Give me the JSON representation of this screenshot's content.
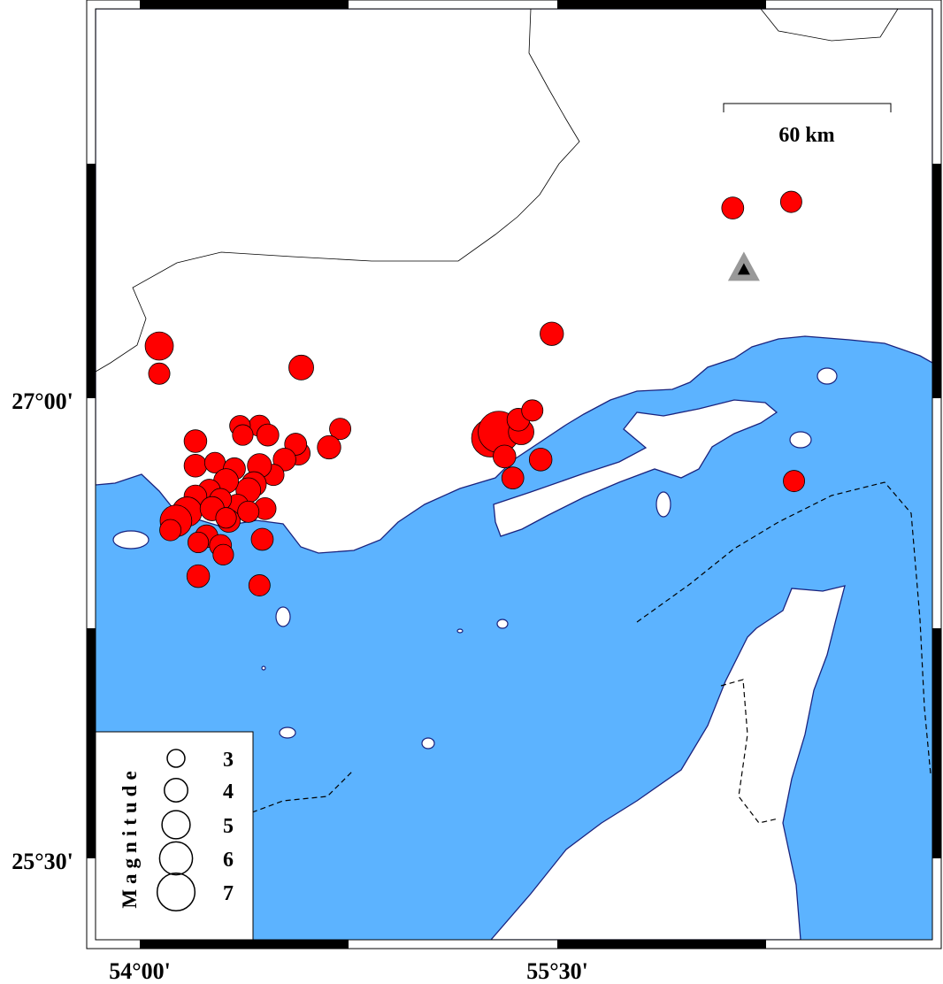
{
  "map": {
    "lon_range": [
      53.84,
      56.85
    ],
    "lat_range": [
      25.17,
      28.3
    ],
    "colors": {
      "sea": "#5cb3ff",
      "land": "#ffffff",
      "coast": "#1a237e",
      "event": "#ff0000",
      "station": "#999999"
    },
    "x_ticks": [
      {
        "lon": 54.0,
        "label": "54°00'"
      },
      {
        "lon": 55.5,
        "label": "55°30'"
      }
    ],
    "y_ticks": [
      {
        "lat": 27.0,
        "label": "27°00'"
      },
      {
        "lat": 25.5,
        "label": "25°30'"
      }
    ],
    "scale_bar": {
      "label": "60 km",
      "length_km": 60
    },
    "station": {
      "lon": 56.17,
      "lat": 27.42,
      "icon": "triangle-icon"
    },
    "legend": {
      "title": "Magnitude",
      "entries": [
        {
          "mag": 3,
          "label": "3"
        },
        {
          "mag": 4,
          "label": "4"
        },
        {
          "mag": 5,
          "label": "5"
        },
        {
          "mag": 6,
          "label": "6"
        },
        {
          "mag": 7,
          "label": "7"
        }
      ]
    }
  },
  "chart_data": {
    "type": "scatter",
    "events": [
      {
        "lon": 56.13,
        "lat": 27.62,
        "mag": 3.5
      },
      {
        "lon": 56.34,
        "lat": 27.64,
        "mag": 3.4
      },
      {
        "lon": 55.48,
        "lat": 27.21,
        "mag": 3.7
      },
      {
        "lon": 54.07,
        "lat": 27.17,
        "mag": 4.4
      },
      {
        "lon": 54.07,
        "lat": 27.08,
        "mag": 3.4
      },
      {
        "lon": 54.58,
        "lat": 27.1,
        "mag": 3.9
      },
      {
        "lon": 54.72,
        "lat": 26.9,
        "mag": 3.4
      },
      {
        "lon": 54.68,
        "lat": 26.84,
        "mag": 3.7
      },
      {
        "lon": 54.57,
        "lat": 26.82,
        "mag": 3.7
      },
      {
        "lon": 54.56,
        "lat": 26.85,
        "mag": 3.5
      },
      {
        "lon": 54.52,
        "lat": 26.8,
        "mag": 3.6
      },
      {
        "lon": 54.48,
        "lat": 26.75,
        "mag": 3.4
      },
      {
        "lon": 54.43,
        "lat": 26.91,
        "mag": 3.4
      },
      {
        "lon": 54.36,
        "lat": 26.91,
        "mag": 3.3
      },
      {
        "lon": 54.37,
        "lat": 26.88,
        "mag": 3.3
      },
      {
        "lon": 54.46,
        "lat": 26.88,
        "mag": 3.5
      },
      {
        "lon": 54.2,
        "lat": 26.86,
        "mag": 3.6
      },
      {
        "lon": 54.2,
        "lat": 26.78,
        "mag": 3.6
      },
      {
        "lon": 54.27,
        "lat": 26.79,
        "mag": 3.3
      },
      {
        "lon": 54.34,
        "lat": 26.77,
        "mag": 3.5
      },
      {
        "lon": 54.43,
        "lat": 26.78,
        "mag": 3.8
      },
      {
        "lon": 54.41,
        "lat": 26.72,
        "mag": 3.9
      },
      {
        "lon": 54.39,
        "lat": 26.7,
        "mag": 3.9
      },
      {
        "lon": 54.31,
        "lat": 26.73,
        "mag": 3.9
      },
      {
        "lon": 54.25,
        "lat": 26.7,
        "mag": 3.5
      },
      {
        "lon": 54.2,
        "lat": 26.68,
        "mag": 3.6
      },
      {
        "lon": 54.35,
        "lat": 26.65,
        "mag": 3.6
      },
      {
        "lon": 54.45,
        "lat": 26.64,
        "mag": 3.5
      },
      {
        "lon": 54.29,
        "lat": 26.67,
        "mag": 3.5
      },
      {
        "lon": 54.17,
        "lat": 26.63,
        "mag": 4.6
      },
      {
        "lon": 54.13,
        "lat": 26.6,
        "mag": 4.9
      },
      {
        "lon": 54.11,
        "lat": 26.57,
        "mag": 3.4
      },
      {
        "lon": 54.24,
        "lat": 26.55,
        "mag": 3.6
      },
      {
        "lon": 54.32,
        "lat": 26.6,
        "mag": 3.6
      },
      {
        "lon": 54.29,
        "lat": 26.52,
        "mag": 3.5
      },
      {
        "lon": 54.21,
        "lat": 26.53,
        "mag": 3.3
      },
      {
        "lon": 54.3,
        "lat": 26.49,
        "mag": 3.3
      },
      {
        "lon": 54.44,
        "lat": 26.54,
        "mag": 3.5
      },
      {
        "lon": 54.21,
        "lat": 26.42,
        "mag": 3.6
      },
      {
        "lon": 54.43,
        "lat": 26.39,
        "mag": 3.4
      },
      {
        "lon": 54.39,
        "lat": 26.63,
        "mag": 3.4
      },
      {
        "lon": 54.26,
        "lat": 26.64,
        "mag": 3.8
      },
      {
        "lon": 54.31,
        "lat": 26.61,
        "mag": 3.3
      },
      {
        "lon": 55.26,
        "lat": 26.87,
        "mag": 5.8
      },
      {
        "lon": 55.29,
        "lat": 26.89,
        "mag": 6.3
      },
      {
        "lon": 55.37,
        "lat": 26.89,
        "mag": 4.0
      },
      {
        "lon": 55.36,
        "lat": 26.93,
        "mag": 3.6
      },
      {
        "lon": 55.41,
        "lat": 26.96,
        "mag": 3.4
      },
      {
        "lon": 55.31,
        "lat": 26.81,
        "mag": 3.6
      },
      {
        "lon": 55.34,
        "lat": 26.74,
        "mag": 3.5
      },
      {
        "lon": 55.44,
        "lat": 26.8,
        "mag": 3.6
      },
      {
        "lon": 56.35,
        "lat": 26.73,
        "mag": 3.4
      }
    ]
  }
}
